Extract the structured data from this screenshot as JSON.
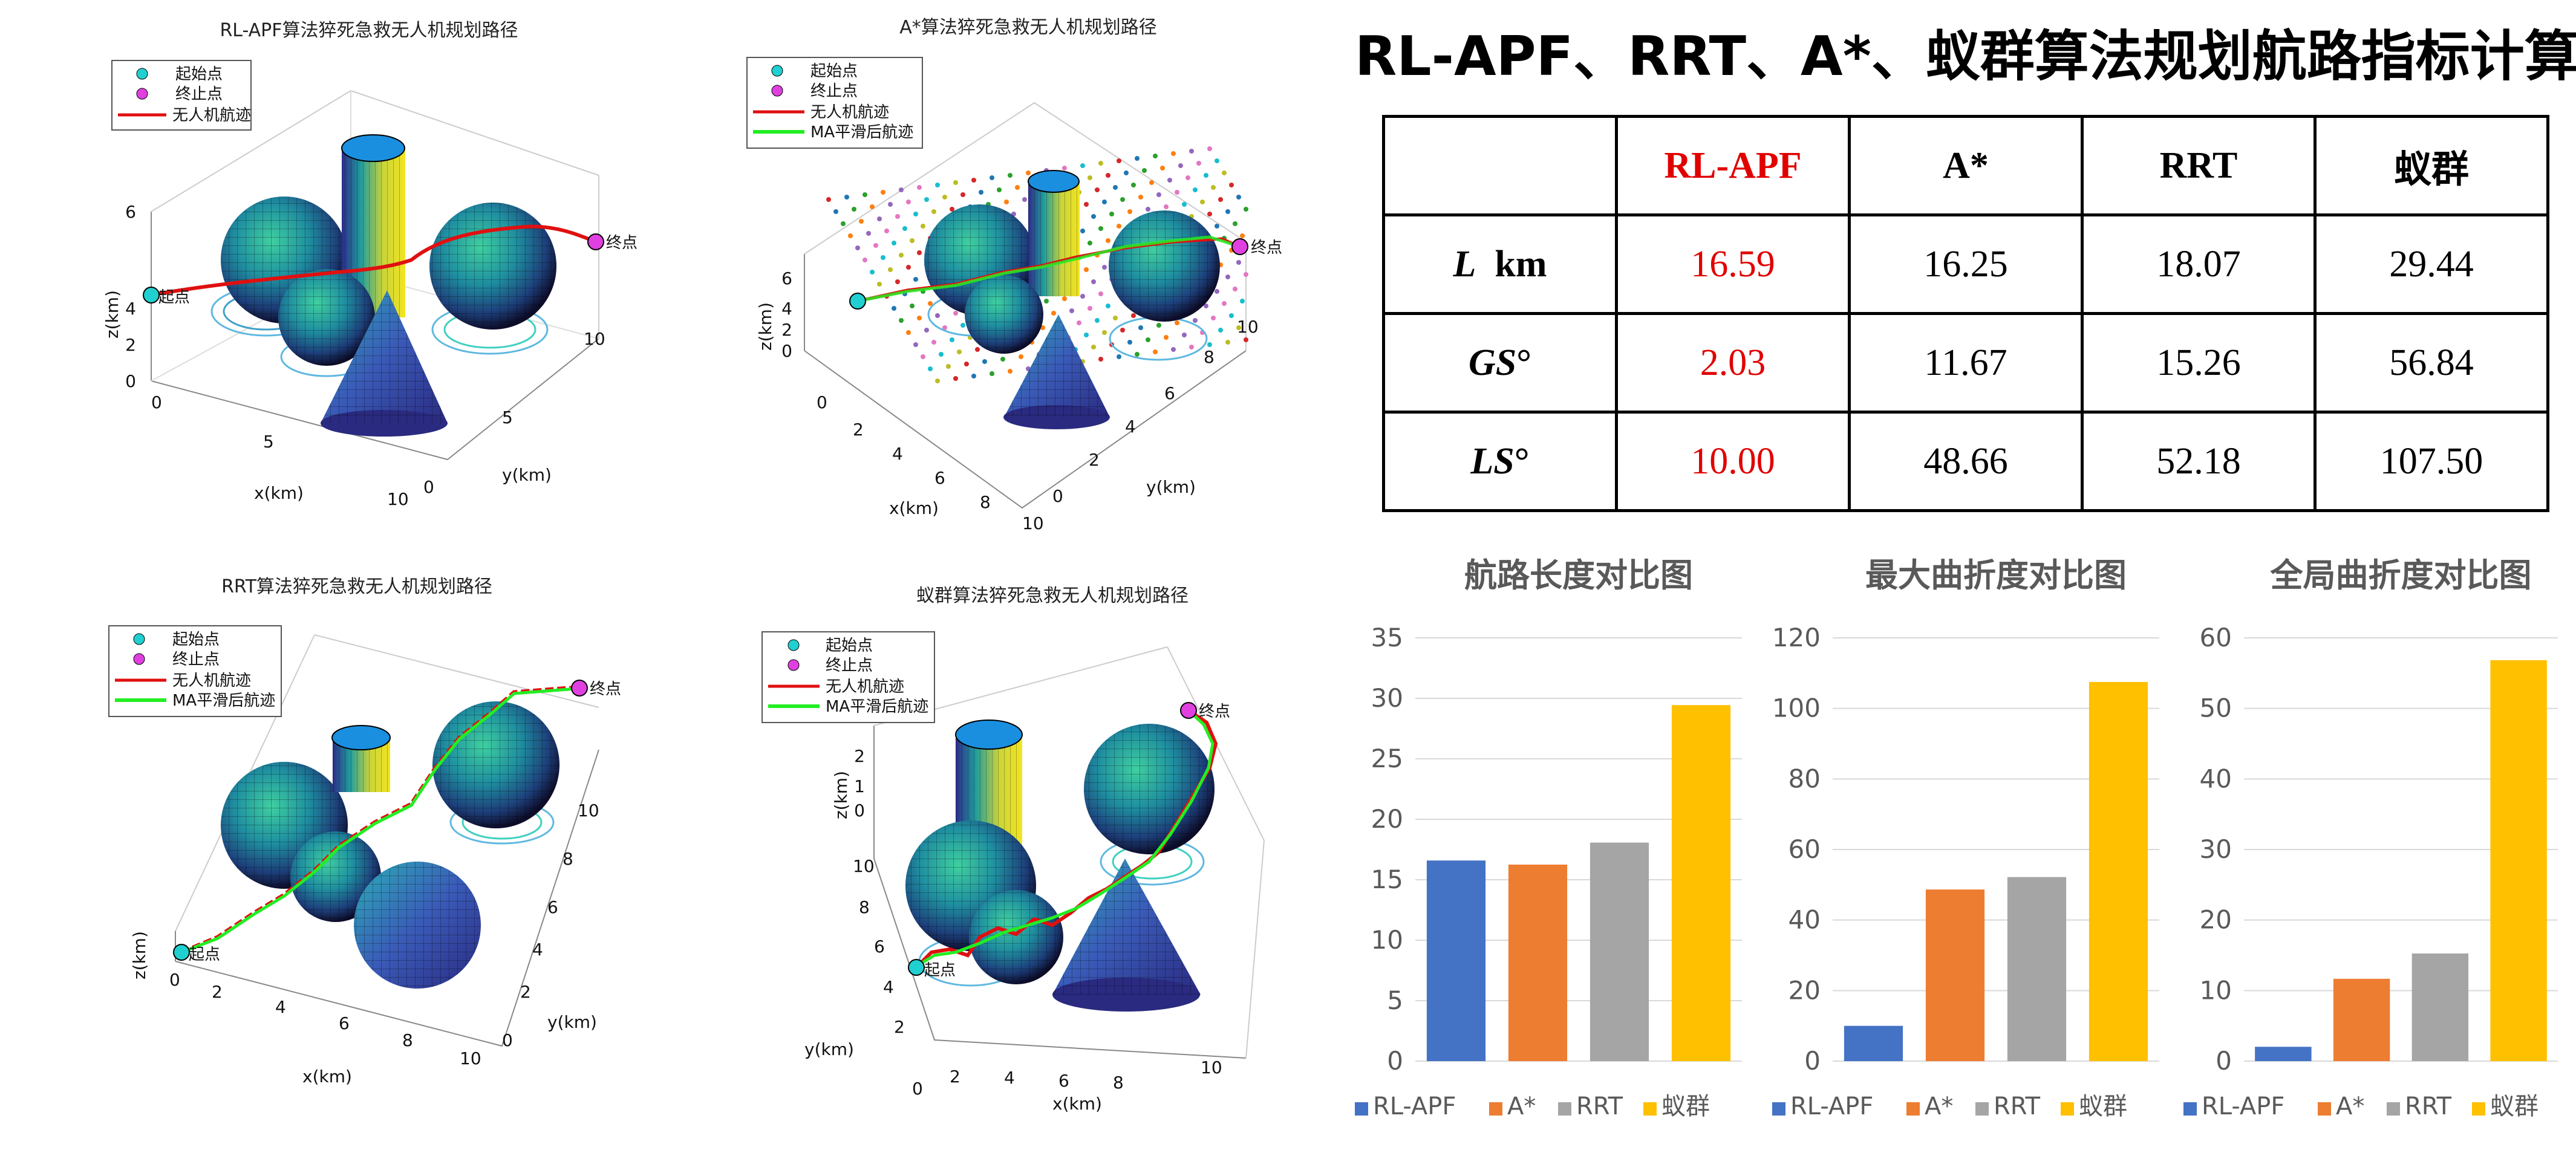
{
  "panels": [
    {
      "title": "RL-APF算法猝死急救无人机规划路径",
      "legend": [
        "起始点",
        "终止点",
        "无人机航迹"
      ],
      "start_label": "起点",
      "end_label": "终点",
      "xlabel": "x(km)",
      "ylabel": "y(km)",
      "zlabel": "z(km)"
    },
    {
      "title": "A*算法猝死急救无人机规划路径",
      "legend": [
        "起始点",
        "终止点",
        "无人机航迹",
        "MA平滑后航迹"
      ],
      "start_label": "起点",
      "end_label": "终点",
      "xlabel": "x(km)",
      "ylabel": "y(km)",
      "zlabel": "z(km)"
    },
    {
      "title": "RRT算法猝死急救无人机规划路径",
      "legend": [
        "起始点",
        "终止点",
        "无人机航迹",
        "MA平滑后航迹"
      ],
      "start_label": "起点",
      "end_label": "终点",
      "xlabel": "x(km)",
      "ylabel": "y(km)",
      "zlabel": "z(km)"
    },
    {
      "title": "蚁群算法猝死急救无人机规划路径",
      "legend": [
        "起始点",
        "终止点",
        "无人机航迹",
        "MA平滑后航迹"
      ],
      "start_label": "起点",
      "end_label": "终点",
      "xlabel": "x(km)",
      "ylabel": "y(km)",
      "zlabel": "z(km)"
    }
  ],
  "page_title": "RL-APF、RRT、A*、蚁群算法规划航路指标计算结果",
  "table": {
    "columns": [
      "",
      "RL-APF",
      "A*",
      "RRT",
      "蚁群"
    ],
    "rows": [
      {
        "label": "L",
        "unit": "km",
        "values": [
          "16.59",
          "16.25",
          "18.07",
          "29.44"
        ]
      },
      {
        "label": "GS",
        "unit": "°",
        "values": [
          "2.03",
          "11.67",
          "15.26",
          "56.84"
        ]
      },
      {
        "label": "LS",
        "unit": "°",
        "values": [
          "10.00",
          "48.66",
          "52.18",
          "107.50"
        ]
      }
    ]
  },
  "colors": {
    "RL-APF": "#4472c4",
    "A*": "#ed7d31",
    "RRT": "#a5a5a5",
    "蚁群": "#ffc000",
    "highlight": "#e00000"
  },
  "chart_data": [
    {
      "type": "bar",
      "title": "航路长度对比图",
      "categories": [
        "RL-APF",
        "A*",
        "RRT",
        "蚁群"
      ],
      "values": [
        16.59,
        16.25,
        18.07,
        29.44
      ],
      "ylim": [
        0,
        35
      ],
      "yticks": [
        0,
        5,
        10,
        15,
        20,
        25,
        30,
        35
      ],
      "grid": true,
      "legend": "bottom"
    },
    {
      "type": "bar",
      "title": "最大曲折度对比图",
      "categories": [
        "RL-APF",
        "A*",
        "RRT",
        "蚁群"
      ],
      "values": [
        10.0,
        48.66,
        52.18,
        107.5
      ],
      "ylim": [
        0,
        120
      ],
      "yticks": [
        0,
        20,
        40,
        60,
        80,
        100,
        120
      ],
      "grid": true,
      "legend": "bottom"
    },
    {
      "type": "bar",
      "title": "全局曲折度对比图",
      "categories": [
        "RL-APF",
        "A*",
        "RRT",
        "蚁群"
      ],
      "values": [
        2.03,
        11.67,
        15.26,
        56.84
      ],
      "ylim": [
        0,
        60
      ],
      "yticks": [
        0,
        10,
        20,
        30,
        40,
        50,
        60
      ],
      "grid": true,
      "legend": "bottom"
    }
  ]
}
